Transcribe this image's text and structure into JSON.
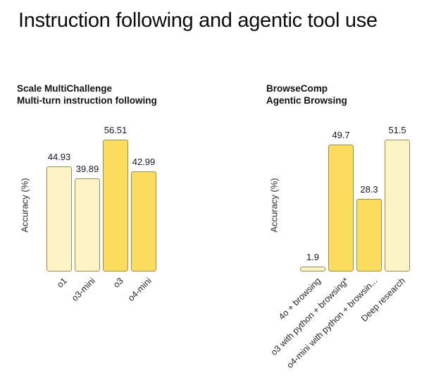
{
  "page": {
    "title": "Instruction following and agentic tool use"
  },
  "colors": {
    "bar_light": "#FCF3C6",
    "bar_dark": "#FADD5C",
    "bar_border": "#9E8E4E",
    "title_text": "#0B0B0B",
    "label_text": "#17172B"
  },
  "chart_data": [
    {
      "type": "bar",
      "title": "Scale MultiChallenge",
      "subtitle": "Multi-turn instruction following",
      "ylabel": "Accuracy (%)",
      "categories": [
        "o1",
        "o3-mini",
        "o3",
        "o4-mini"
      ],
      "values": [
        44.93,
        39.89,
        56.51,
        42.99
      ],
      "value_labels": [
        "44.93",
        "39.89",
        "56.51",
        "42.99"
      ],
      "bar_styles": [
        "light",
        "light",
        "dark",
        "dark"
      ],
      "ymax": 56.51,
      "grid": false,
      "legend": "none"
    },
    {
      "type": "bar",
      "title": "BrowseComp",
      "subtitle": "Agentic Browsing",
      "ylabel": "Accuracy (%)",
      "categories": [
        "4o + browsing",
        "o3 with python + browsing*",
        "o4-mini with python + browsin...",
        "Deep research"
      ],
      "values": [
        1.9,
        49.7,
        28.3,
        51.5
      ],
      "value_labels": [
        "1.9",
        "49.7",
        "28.3",
        "51.5"
      ],
      "bar_styles": [
        "light",
        "dark",
        "dark",
        "light"
      ],
      "ymax": 51.5,
      "grid": false,
      "legend": "none"
    }
  ]
}
